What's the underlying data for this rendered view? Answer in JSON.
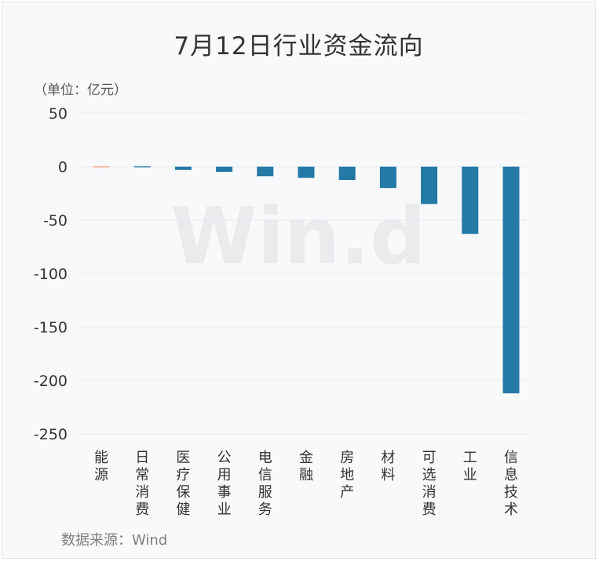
{
  "title": "7月12日行业资金流向",
  "unit_label": "（单位：亿元）",
  "source": "数据来源：Wind",
  "watermark": "Win.d",
  "colors": {
    "bar": "#2479a5",
    "bar_positive": "#f0a080",
    "grid": "#e8ebee",
    "text": "#333333"
  },
  "chart_data": {
    "type": "bar",
    "categories": [
      "能源",
      "日常消费",
      "医疗保健",
      "公用事业",
      "电信服务",
      "金融",
      "房地产",
      "材料",
      "可选消费",
      "工业",
      "信息技术"
    ],
    "values": [
      0.3,
      -1,
      -3,
      -5,
      -9,
      -10.5,
      -12.5,
      -20,
      -35,
      -63,
      -212
    ],
    "yticks": [
      "50",
      "0",
      "-50",
      "-100",
      "-150",
      "-200",
      "-250"
    ],
    "ylim": [
      -250,
      50
    ],
    "grid": true,
    "xlabel": "",
    "ylabel": ""
  }
}
